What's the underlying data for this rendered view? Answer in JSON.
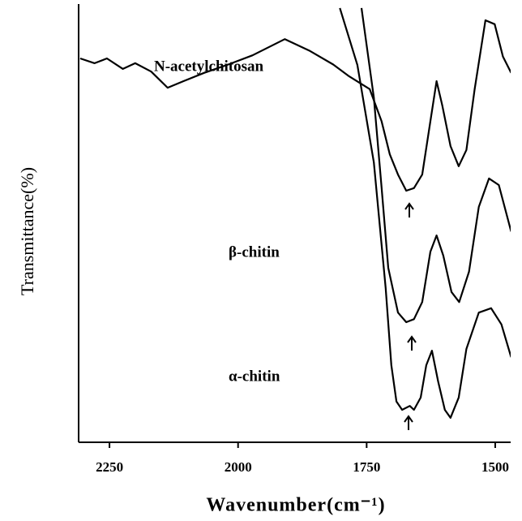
{
  "chart_data": {
    "type": "line",
    "x_label": "Wavenumber(cm⁻¹)",
    "y_label": "Transmittance(%)",
    "xlim": [
      2310,
      1470
    ],
    "ylim": [
      0,
      100
    ],
    "xticks": [
      2250,
      2000,
      1750,
      1500
    ],
    "grid": false,
    "series": [
      {
        "name": "N-acetylchitosan",
        "color": "#000000",
        "x": [
          2307,
          2279,
          2255,
          2224,
          2200,
          2169,
          2137,
          2106,
          2066,
          2019,
          1972,
          1909,
          1862,
          1815,
          1784,
          1744,
          1721,
          1705,
          1689,
          1673,
          1658,
          1642,
          1626,
          1614,
          1603,
          1587,
          1571,
          1556,
          1540,
          1519,
          1501,
          1485,
          1469
        ],
        "values": [
          87.6,
          86.5,
          87.6,
          85.2,
          86.5,
          84.6,
          80.9,
          82.4,
          84.3,
          86.2,
          88.3,
          92.0,
          89.4,
          86.2,
          83.5,
          80.6,
          73.3,
          65.7,
          61.1,
          57.4,
          58.0,
          61.1,
          73.3,
          82.4,
          76.9,
          67.6,
          63.0,
          66.7,
          80.6,
          96.3,
          95.4,
          88.0,
          84.3
        ]
      },
      {
        "name": "β-chitin",
        "color": "#000000",
        "x": [
          1760,
          1736,
          1721,
          1708,
          1689,
          1673,
          1658,
          1642,
          1626,
          1614,
          1601,
          1585,
          1570,
          1551,
          1532,
          1512,
          1493,
          1469
        ],
        "values": [
          99.1,
          78.7,
          58.3,
          39.8,
          29.6,
          27.4,
          28.1,
          32.0,
          43.5,
          47.2,
          42.6,
          34.3,
          32.0,
          38.9,
          53.7,
          60.2,
          58.7,
          48.1
        ]
      },
      {
        "name": "α-chitin",
        "color": "#000000",
        "x": [
          1802,
          1768,
          1736,
          1713,
          1702,
          1692,
          1681,
          1666,
          1658,
          1645,
          1634,
          1623,
          1611,
          1598,
          1587,
          1571,
          1556,
          1532,
          1508,
          1488,
          1469
        ],
        "values": [
          99.1,
          86.1,
          63.9,
          35.2,
          17.6,
          9.3,
          7.4,
          8.3,
          7.4,
          10.2,
          17.6,
          20.9,
          13.9,
          7.4,
          5.6,
          10.2,
          21.3,
          29.6,
          30.6,
          26.9,
          19.4
        ]
      }
    ]
  }
}
